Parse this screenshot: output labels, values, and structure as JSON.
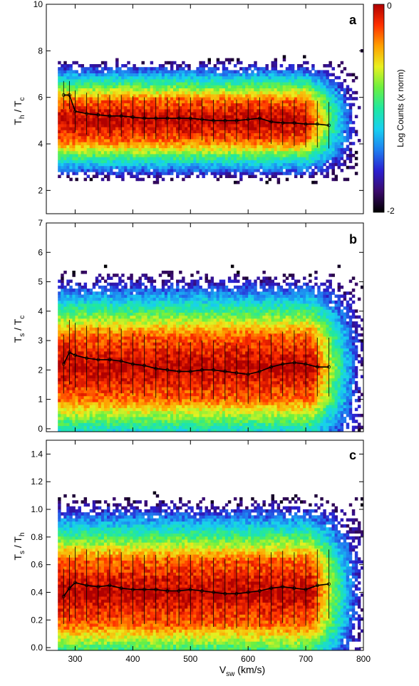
{
  "figure": {
    "xlabel_main": "V",
    "xlabel_sub": "sw",
    "xlabel_unit": " (km/s)",
    "x_ticks": [
      "300",
      "400",
      "500",
      "600",
      "700",
      "800"
    ]
  },
  "colorbar": {
    "label": "Log Counts (x norm)",
    "max_label": "0",
    "min_label": "-2",
    "colors": [
      "#000000",
      "#3a0a6a",
      "#2b1fd0",
      "#1f7ff0",
      "#18d0f0",
      "#20e8a0",
      "#6cf040",
      "#e8f020",
      "#ffa000",
      "#ff3000",
      "#b00000"
    ]
  },
  "chart_data": [
    {
      "type": "heatmap",
      "panel_label": "a",
      "ylabel_main": "T",
      "ylabel_sub1": "h",
      "ylabel_mid": " / T",
      "ylabel_sub2": "c",
      "xlim": [
        250,
        800
      ],
      "ylim": [
        1,
        10
      ],
      "y_ticks": [
        "2",
        "4",
        "6",
        "8",
        "10"
      ],
      "y_tick_values": [
        2,
        4,
        6,
        8,
        10
      ],
      "grid": false,
      "density": {
        "core_center": 5.0,
        "core_halfwidth": 0.9,
        "outer_halfwidth": 2.7,
        "vmin": 270,
        "vmax": 760
      },
      "x": [
        280,
        290,
        300,
        320,
        340,
        360,
        380,
        400,
        420,
        440,
        460,
        480,
        500,
        520,
        540,
        560,
        580,
        600,
        620,
        640,
        660,
        680,
        700,
        720,
        740
      ],
      "mean": [
        6.1,
        6.1,
        5.4,
        5.3,
        5.25,
        5.2,
        5.2,
        5.15,
        5.1,
        5.1,
        5.1,
        5.1,
        5.1,
        5.05,
        5.0,
        5.0,
        5.0,
        5.05,
        5.1,
        4.95,
        4.9,
        4.9,
        4.85,
        4.85,
        4.8
      ],
      "err": [
        0.6,
        0.6,
        0.9,
        0.9,
        0.9,
        0.9,
        0.9,
        0.9,
        0.9,
        0.9,
        0.9,
        0.9,
        0.9,
        0.9,
        0.9,
        0.9,
        0.9,
        0.9,
        0.9,
        0.95,
        0.95,
        1.0,
        1.0,
        1.0,
        1.0
      ]
    },
    {
      "type": "heatmap",
      "panel_label": "b",
      "ylabel_main": "T",
      "ylabel_sub1": "s",
      "ylabel_mid": " / T",
      "ylabel_sub2": "c",
      "xlim": [
        250,
        800
      ],
      "ylim": [
        -0.1,
        7
      ],
      "y_ticks": [
        "0",
        "1",
        "2",
        "3",
        "4",
        "5",
        "6",
        "7"
      ],
      "y_tick_values": [
        0,
        1,
        2,
        3,
        4,
        5,
        6,
        7
      ],
      "grid": false,
      "density": {
        "core_center": 2.1,
        "core_halfwidth": 1.1,
        "outer_halfwidth": 3.3,
        "vmin": 270,
        "vmax": 770
      },
      "x": [
        280,
        290,
        300,
        320,
        340,
        360,
        380,
        400,
        420,
        440,
        460,
        480,
        500,
        520,
        540,
        560,
        580,
        600,
        620,
        640,
        660,
        680,
        700,
        720,
        740
      ],
      "mean": [
        2.2,
        2.6,
        2.5,
        2.4,
        2.35,
        2.35,
        2.3,
        2.2,
        2.15,
        2.05,
        2.0,
        1.95,
        1.95,
        2.0,
        2.0,
        1.95,
        1.9,
        1.85,
        1.95,
        2.1,
        2.2,
        2.25,
        2.2,
        2.1,
        2.1
      ],
      "err": [
        1.0,
        1.1,
        1.1,
        1.1,
        1.1,
        1.1,
        1.1,
        1.05,
        1.05,
        1.0,
        1.0,
        1.0,
        1.0,
        1.0,
        1.0,
        1.0,
        1.0,
        1.0,
        1.05,
        1.1,
        1.1,
        1.1,
        1.1,
        1.0,
        1.0
      ]
    },
    {
      "type": "heatmap",
      "panel_label": "c",
      "ylabel_main": "T",
      "ylabel_sub1": "s",
      "ylabel_mid": " / T",
      "ylabel_sub2": "h",
      "xlim": [
        250,
        800
      ],
      "ylim": [
        -0.02,
        1.5
      ],
      "y_ticks": [
        "0.0",
        "0.2",
        "0.4",
        "0.6",
        "0.8",
        "1.0",
        "1.2",
        "1.4"
      ],
      "y_tick_values": [
        0.0,
        0.2,
        0.4,
        0.6,
        0.8,
        1.0,
        1.2,
        1.4
      ],
      "grid": false,
      "density": {
        "core_center": 0.4,
        "core_halfwidth": 0.24,
        "outer_halfwidth": 0.7,
        "vmin": 270,
        "vmax": 770
      },
      "x": [
        280,
        290,
        300,
        320,
        340,
        360,
        380,
        400,
        420,
        440,
        460,
        480,
        500,
        520,
        540,
        560,
        580,
        600,
        620,
        640,
        660,
        680,
        700,
        720,
        740
      ],
      "mean": [
        0.37,
        0.43,
        0.47,
        0.45,
        0.44,
        0.45,
        0.43,
        0.42,
        0.42,
        0.42,
        0.41,
        0.41,
        0.42,
        0.41,
        0.4,
        0.39,
        0.39,
        0.4,
        0.41,
        0.43,
        0.44,
        0.43,
        0.42,
        0.45,
        0.46
      ],
      "err": [
        0.2,
        0.24,
        0.26,
        0.26,
        0.26,
        0.26,
        0.26,
        0.25,
        0.25,
        0.25,
        0.25,
        0.25,
        0.25,
        0.25,
        0.25,
        0.25,
        0.25,
        0.25,
        0.26,
        0.26,
        0.26,
        0.26,
        0.26,
        0.26,
        0.25
      ]
    }
  ]
}
